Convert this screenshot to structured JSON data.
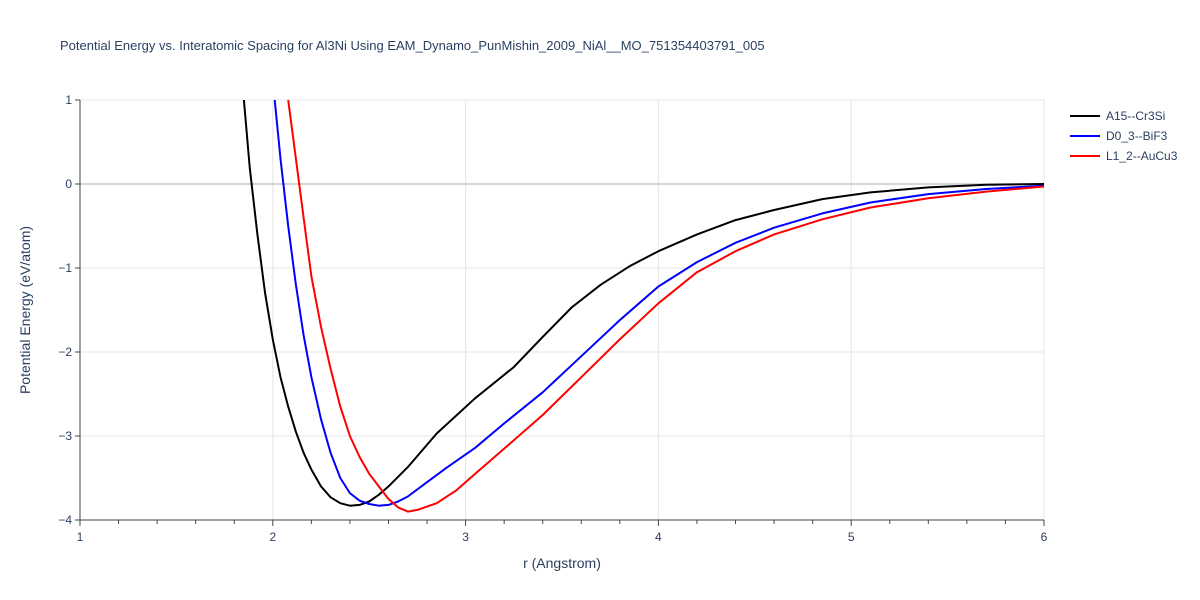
{
  "chart_data": {
    "type": "line",
    "title": "Potential Energy vs. Interatomic Spacing for Al3Ni Using EAM_Dynamo_PunMishin_2009_NiAl__MO_751354403791_005",
    "xlabel": "r (Angstrom)",
    "ylabel": "Potential Energy (eV/atom)",
    "xlim": [
      1,
      6
    ],
    "ylim": [
      -4,
      1
    ],
    "xticks": [
      1,
      2,
      3,
      4,
      5,
      6
    ],
    "yticks": [
      1,
      0,
      -1,
      -2,
      -3,
      -4
    ],
    "xtick_labels": [
      "1",
      "2",
      "3",
      "4",
      "5",
      "6"
    ],
    "ytick_labels": [
      "1",
      "0",
      "−1",
      "−2",
      "−3",
      "−4"
    ],
    "grid": true,
    "legend_position": "top-right",
    "series": [
      {
        "name": "A15--Cr3Si",
        "color": "#000000",
        "x": [
          1.85,
          1.88,
          1.92,
          1.96,
          2.0,
          2.04,
          2.08,
          2.12,
          2.16,
          2.2,
          2.25,
          2.3,
          2.35,
          2.4,
          2.45,
          2.5,
          2.55,
          2.6,
          2.7,
          2.85,
          3.05,
          3.25,
          3.4,
          3.55,
          3.7,
          3.85,
          4.0,
          4.2,
          4.4,
          4.6,
          4.85,
          5.1,
          5.4,
          5.7,
          6.0
        ],
        "y": [
          1.0,
          0.2,
          -0.6,
          -1.3,
          -1.85,
          -2.3,
          -2.65,
          -2.95,
          -3.2,
          -3.4,
          -3.6,
          -3.73,
          -3.8,
          -3.83,
          -3.82,
          -3.78,
          -3.7,
          -3.6,
          -3.37,
          -2.97,
          -2.55,
          -2.18,
          -1.82,
          -1.47,
          -1.2,
          -0.98,
          -0.8,
          -0.6,
          -0.43,
          -0.31,
          -0.18,
          -0.1,
          -0.04,
          -0.01,
          0.0
        ]
      },
      {
        "name": "D0_3--BiF3",
        "color": "#0000ff",
        "x": [
          2.01,
          2.04,
          2.08,
          2.12,
          2.16,
          2.2,
          2.25,
          2.3,
          2.35,
          2.4,
          2.45,
          2.5,
          2.55,
          2.6,
          2.65,
          2.7,
          2.8,
          2.9,
          3.05,
          3.2,
          3.4,
          3.6,
          3.8,
          4.0,
          4.2,
          4.4,
          4.6,
          4.85,
          5.1,
          5.4,
          5.7,
          6.0
        ],
        "y": [
          1.0,
          0.3,
          -0.5,
          -1.2,
          -1.8,
          -2.3,
          -2.8,
          -3.2,
          -3.5,
          -3.68,
          -3.77,
          -3.81,
          -3.83,
          -3.82,
          -3.78,
          -3.72,
          -3.55,
          -3.38,
          -3.14,
          -2.85,
          -2.48,
          -2.05,
          -1.62,
          -1.22,
          -0.93,
          -0.7,
          -0.52,
          -0.35,
          -0.22,
          -0.12,
          -0.06,
          -0.02
        ]
      },
      {
        "name": "L1_2--AuCu3",
        "color": "#ff0000",
        "x": [
          2.08,
          2.12,
          2.16,
          2.2,
          2.25,
          2.3,
          2.35,
          2.4,
          2.45,
          2.5,
          2.55,
          2.6,
          2.65,
          2.7,
          2.75,
          2.85,
          2.95,
          3.05,
          3.2,
          3.4,
          3.6,
          3.8,
          4.0,
          4.2,
          4.4,
          4.6,
          4.85,
          5.1,
          5.4,
          5.7,
          6.0
        ],
        "y": [
          1.0,
          0.3,
          -0.4,
          -1.1,
          -1.7,
          -2.2,
          -2.65,
          -3.0,
          -3.25,
          -3.45,
          -3.6,
          -3.75,
          -3.85,
          -3.9,
          -3.88,
          -3.8,
          -3.65,
          -3.45,
          -3.15,
          -2.75,
          -2.3,
          -1.85,
          -1.42,
          -1.05,
          -0.8,
          -0.6,
          -0.42,
          -0.28,
          -0.17,
          -0.09,
          -0.03
        ]
      }
    ]
  }
}
